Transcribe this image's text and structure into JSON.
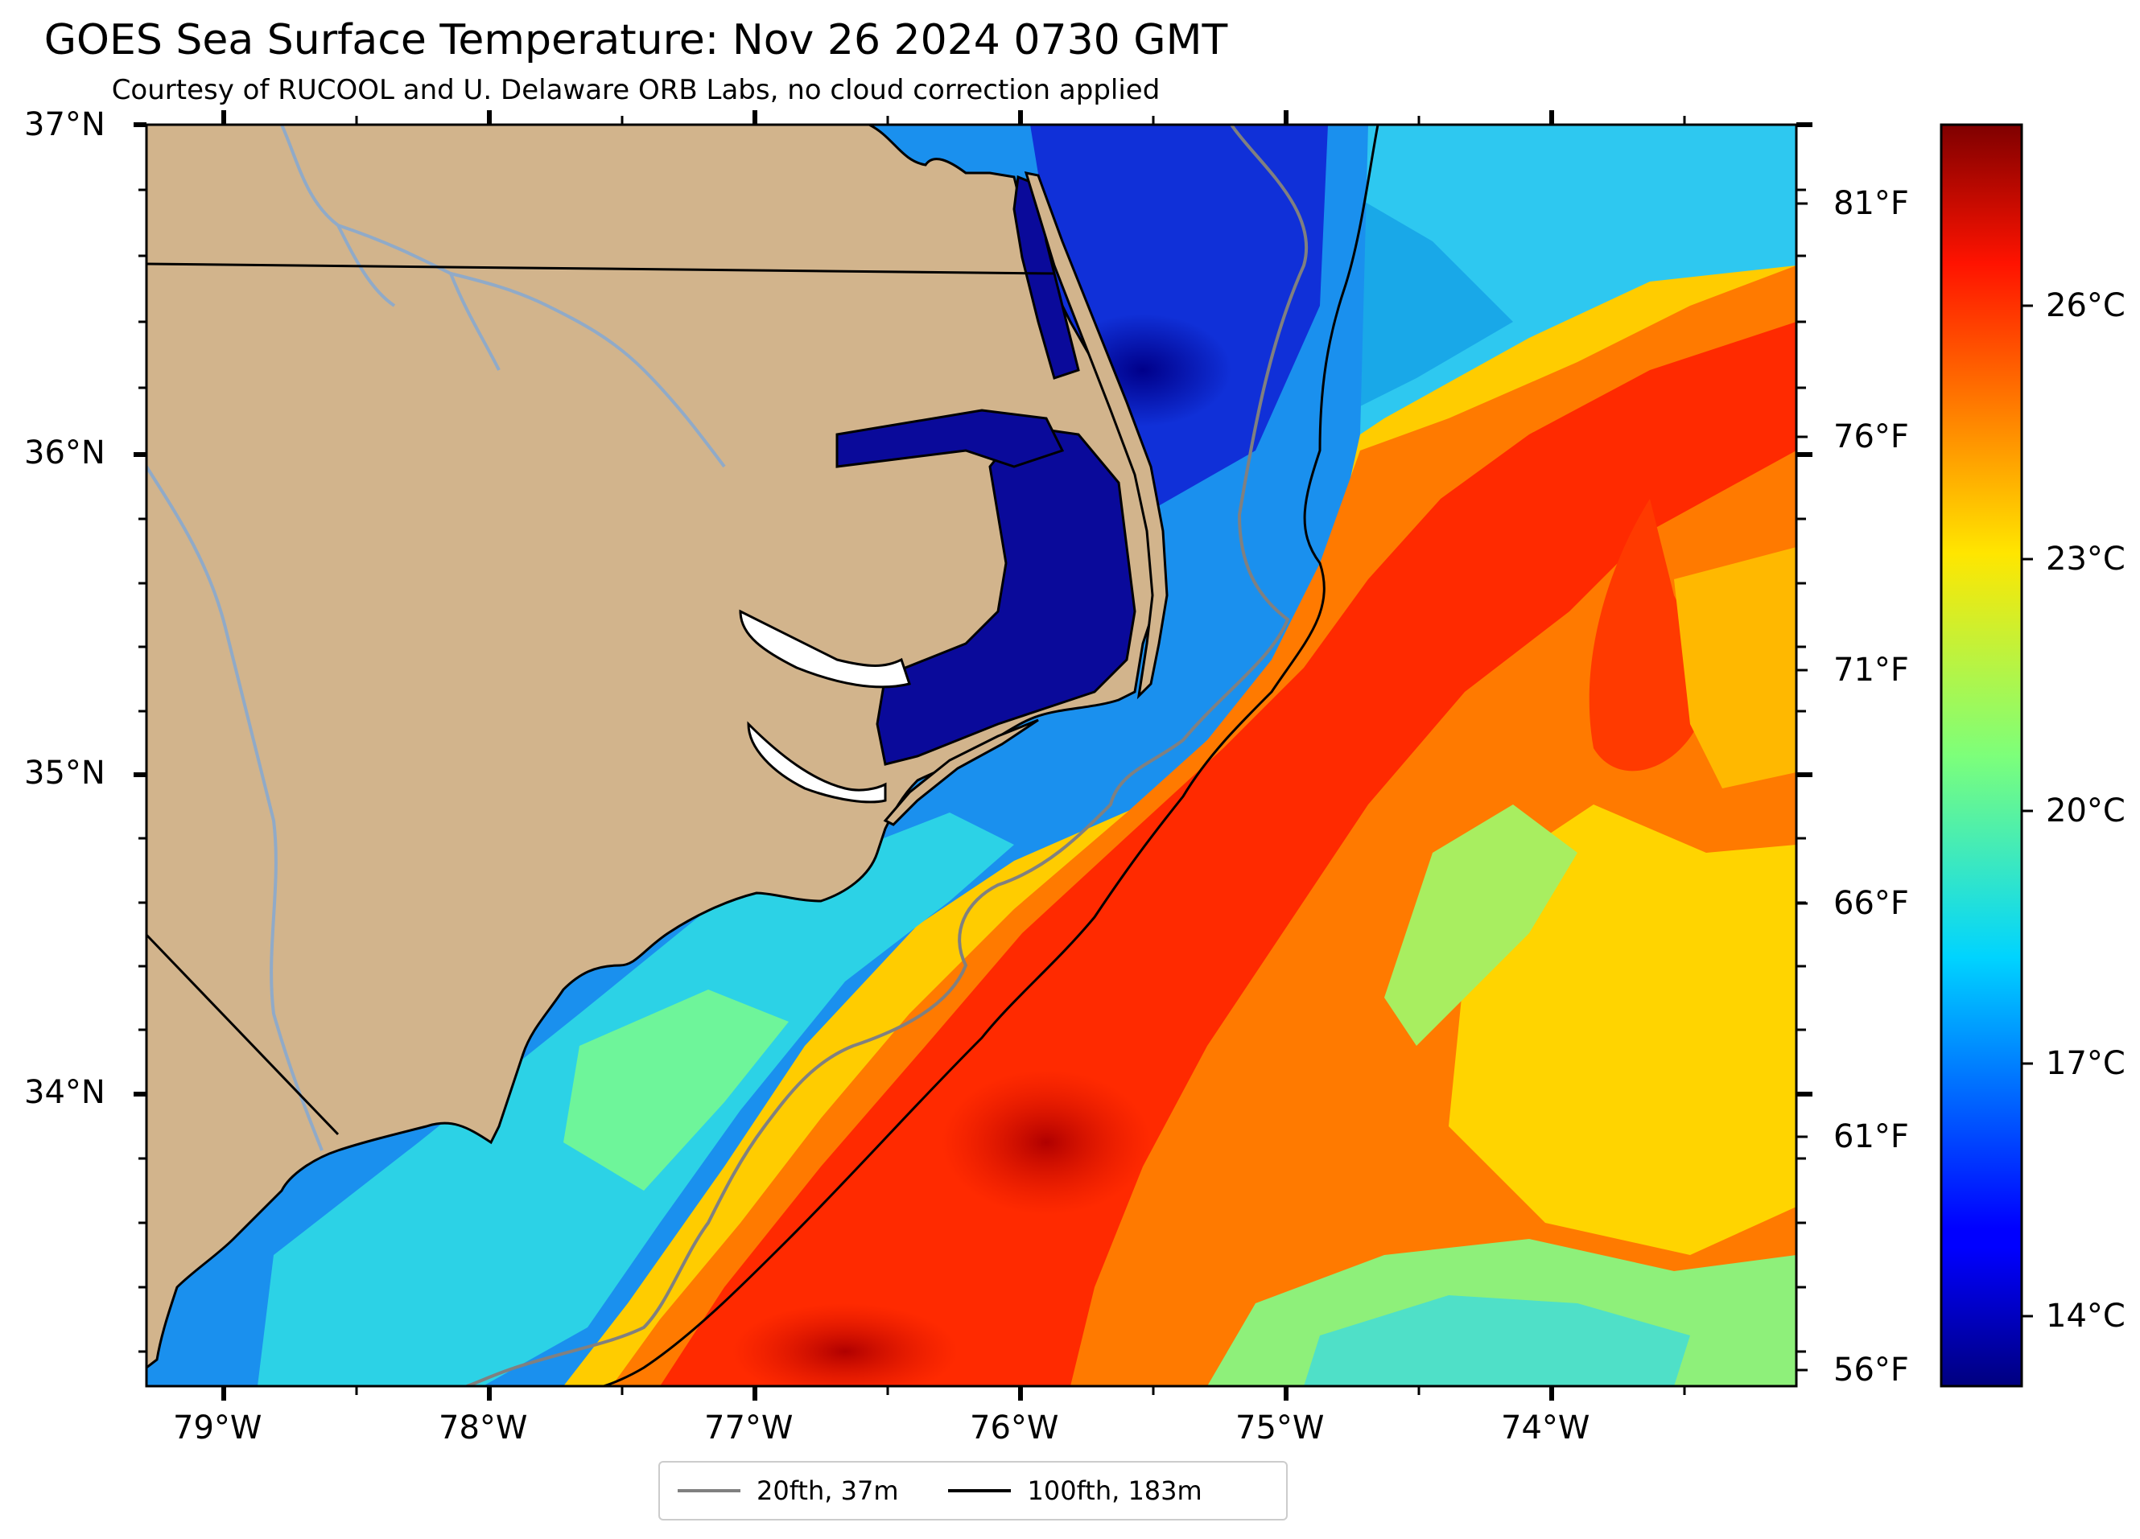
{
  "header": {
    "title": "GOES Sea Surface Temperature: Nov 26 2024 0730 GMT",
    "subtitle": "Courtesy of RUCOOL and U. Delaware ORB Labs, no cloud correction applied"
  },
  "map": {
    "region": "North Carolina coast / Cape Hatteras",
    "land_color": "#d2b48c",
    "lat_ticks": [
      "37°N",
      "36°N",
      "35°N",
      "34°N"
    ],
    "lon_ticks": [
      "79°W",
      "78°W",
      "77°W",
      "76°W",
      "75°W",
      "74°W"
    ]
  },
  "colorbar": {
    "colormap": "jet",
    "celsius_ticks": [
      "26°C",
      "23°C",
      "20°C",
      "17°C",
      "14°C"
    ],
    "fahrenheit_ticks": [
      "81°F",
      "76°F",
      "71°F",
      "66°F",
      "61°F",
      "56°F"
    ]
  },
  "legend": {
    "items": [
      {
        "label": "20fth, 37m",
        "color": "#808080"
      },
      {
        "label": "100fth, 183m",
        "color": "#000000"
      }
    ]
  }
}
